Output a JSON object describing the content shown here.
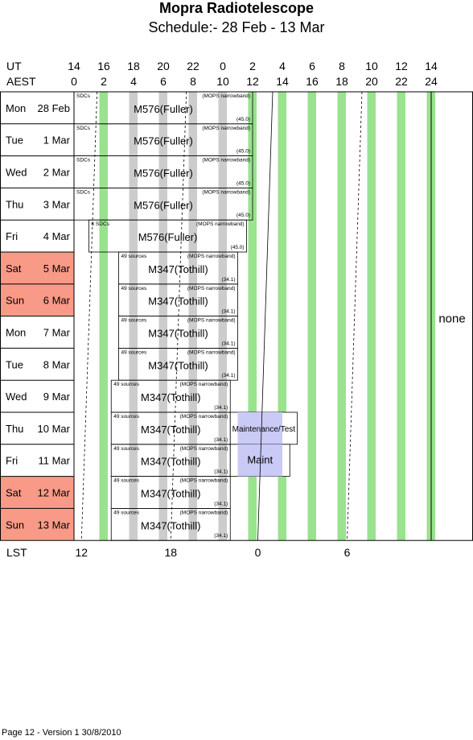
{
  "header": {
    "title": "Mopra Radiotelescope",
    "subtitle": "Schedule:- 28 Feb - 13 Mar"
  },
  "axes": {
    "ut_label": "UT",
    "aest_label": "AEST",
    "lst_label": "LST",
    "ut_ticks": [
      "14",
      "16",
      "18",
      "20",
      "22",
      "0",
      "2",
      "4",
      "6",
      "8",
      "10",
      "12",
      "14"
    ],
    "aest_ticks": [
      "0",
      "2",
      "4",
      "6",
      "8",
      "10",
      "12",
      "14",
      "16",
      "18",
      "20",
      "22",
      "24"
    ],
    "lst_ticks": [
      {
        "label": "12",
        "hour": 0.5
      },
      {
        "label": "18",
        "hour": 6.5
      },
      {
        "label": "0",
        "hour": 12.35
      },
      {
        "label": "6",
        "hour": 18.35
      }
    ]
  },
  "colors": {
    "weekend": "#f99a88",
    "green": "#99e28e",
    "grey": "#cccccc",
    "maint": "#cacaf7"
  },
  "days": [
    {
      "day": "Mon",
      "date": "28 Feb",
      "weekend": false,
      "blocks": [
        {
          "start": 0,
          "end": 12,
          "project": "M576(Fuller)",
          "left_note": "SDCs",
          "right_note": "(MOPS narrowband)",
          "value": "(45.0)"
        }
      ]
    },
    {
      "day": "Tue",
      "date": "1 Mar",
      "weekend": false,
      "blocks": [
        {
          "start": 0,
          "end": 12,
          "project": "M576(Fuller)",
          "left_note": "SDCs",
          "right_note": "(MOPS narrowband)",
          "value": "(45.0)"
        }
      ]
    },
    {
      "day": "Wed",
      "date": "2 Mar",
      "weekend": false,
      "blocks": [
        {
          "start": 0,
          "end": 12,
          "project": "M576(Fuller)",
          "left_note": "SDCs",
          "right_note": "(MOPS narrowband)",
          "value": "(45.0)"
        }
      ]
    },
    {
      "day": "Thu",
      "date": "3 Mar",
      "weekend": false,
      "blocks": [
        {
          "start": 0,
          "end": 12,
          "project": "M576(Fuller)",
          "left_note": "SDCs",
          "right_note": "(MOPS narrowband)",
          "value": "(45.0)"
        }
      ]
    },
    {
      "day": "Fri",
      "date": "4 Mar",
      "weekend": false,
      "blocks": [
        {
          "start": 1,
          "end": 11.6,
          "project": "M576(Fuller)",
          "left_note": "SDCs",
          "left_prefix": "6",
          "right_note": "(MOPS narrowband)",
          "value": "(45.0)"
        }
      ]
    },
    {
      "day": "Sat",
      "date": "5 Mar",
      "weekend": true,
      "blocks": [
        {
          "start": 3,
          "end": 11,
          "project": "M347(Tothill)",
          "left_note": "49 sources",
          "right_note": "(MOPS narrowband)",
          "value": "(34.1)"
        }
      ]
    },
    {
      "day": "Sun",
      "date": "6 Mar",
      "weekend": true,
      "blocks": [
        {
          "start": 3,
          "end": 11,
          "project": "M347(Tothill)",
          "left_note": "49 sources",
          "right_note": "(MOPS narrowband)",
          "value": "(34.1)"
        }
      ]
    },
    {
      "day": "Mon",
      "date": "7 Mar",
      "weekend": false,
      "blocks": [
        {
          "start": 3,
          "end": 11,
          "project": "M347(Tothill)",
          "left_note": "49 sources",
          "right_note": "(MOPS narrowband)",
          "value": "(34.1)"
        }
      ]
    },
    {
      "day": "Tue",
      "date": "8 Mar",
      "weekend": false,
      "blocks": [
        {
          "start": 3,
          "end": 11,
          "project": "M347(Tothill)",
          "left_note": "49 sources",
          "right_note": "(MOPS narrowband)",
          "value": "(34.1)"
        }
      ]
    },
    {
      "day": "Wed",
      "date": "9 Mar",
      "weekend": false,
      "blocks": [
        {
          "start": 2.5,
          "end": 10.5,
          "project": "M347(Tothill)",
          "left_note": "49 sources",
          "right_note": "(MOPS narrowband)",
          "value": "(34.1)"
        }
      ]
    },
    {
      "day": "Thu",
      "date": "10 Mar",
      "weekend": false,
      "blocks": [
        {
          "start": 2.5,
          "end": 10.5,
          "project": "M347(Tothill)",
          "left_note": "49 sources",
          "right_note": "(MOPS narrowband)",
          "value": "(34.1)"
        },
        {
          "start": 10.5,
          "end": 15,
          "project": "Maintenance/Test",
          "maint": true,
          "fill_start": 11,
          "fill_end": 14
        }
      ]
    },
    {
      "day": "Fri",
      "date": "11 Mar",
      "weekend": false,
      "blocks": [
        {
          "start": 2.5,
          "end": 10.5,
          "project": "M347(Tothill)",
          "left_note": "49 sources",
          "right_note": "(MOPS narrowband)",
          "value": "(34.1)"
        },
        {
          "start": 10.5,
          "end": 14.5,
          "project": "Maint",
          "maint": true,
          "fill_start": 11,
          "fill_end": 14
        }
      ]
    },
    {
      "day": "Sat",
      "date": "12 Mar",
      "weekend": true,
      "blocks": [
        {
          "start": 2.5,
          "end": 10.5,
          "project": "M347(Tothill)",
          "left_note": "49 sources",
          "right_note": "(MOPS narrowband)",
          "value": "(34.1)"
        }
      ]
    },
    {
      "day": "Sun",
      "date": "13 Mar",
      "weekend": true,
      "blocks": [
        {
          "start": 2.5,
          "end": 10.5,
          "project": "M347(Tothill)",
          "left_note": "49 sources",
          "right_note": "(MOPS narrowband)",
          "value": "(34.1)"
        }
      ]
    }
  ],
  "side_label": "none",
  "footer": "Page 12 - Version 1  30/8/2010"
}
